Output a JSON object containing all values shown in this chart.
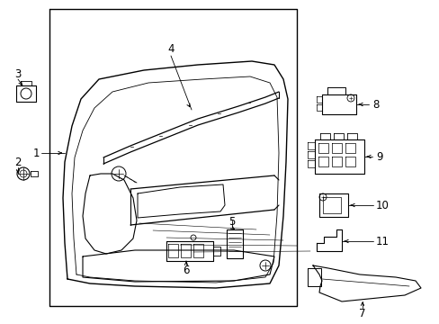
{
  "bg": "#ffffff",
  "lc": "#000000",
  "fig_w": 4.89,
  "fig_h": 3.6,
  "dpi": 100
}
